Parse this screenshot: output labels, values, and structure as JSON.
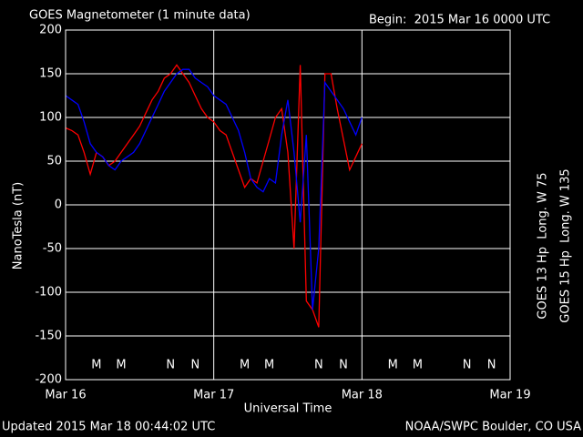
{
  "chart_data": {
    "type": "line",
    "title": "GOES Magnetometer (1 minute data)",
    "subtitle": "Begin:  2015 Mar 16 0000 UTC",
    "x_label": "Universal Time",
    "y_label": "NanoTesla (nT)",
    "footer_left": "Updated 2015 Mar 18 00:44:02 UTC",
    "footer_right": "NOAA/SWPC Boulder, CO USA",
    "background": "#000000",
    "grid": true,
    "grid_color": "#ffffff",
    "xlim": [
      0,
      72
    ],
    "xticks": [
      {
        "value": 0,
        "label": "Mar 16"
      },
      {
        "value": 24,
        "label": "Mar 17"
      },
      {
        "value": 48,
        "label": "Mar 18"
      },
      {
        "value": 72,
        "label": "Mar 19"
      }
    ],
    "ylim": [
      -200,
      200
    ],
    "yticks": [
      -200,
      -150,
      -100,
      -50,
      0,
      50,
      100,
      150,
      200
    ],
    "day_marker_labels": {
      "midnight": "M",
      "noon": "N"
    },
    "x": [
      0,
      1,
      2,
      3,
      4,
      5,
      6,
      7,
      8,
      9,
      10,
      11,
      12,
      13,
      14,
      15,
      16,
      17,
      18,
      19,
      20,
      21,
      22,
      23,
      24,
      25,
      26,
      27,
      28,
      29,
      30,
      31,
      32,
      33,
      34,
      35,
      36,
      37,
      38,
      39,
      40,
      41,
      42,
      43,
      44,
      45,
      46,
      47,
      48
    ],
    "series": [
      {
        "name": "GOES 13 Hp  Long. W 75",
        "color": "#ff0000",
        "values": [
          88,
          85,
          80,
          60,
          35,
          60,
          55,
          45,
          50,
          60,
          70,
          80,
          90,
          105,
          120,
          130,
          145,
          150,
          160,
          150,
          140,
          125,
          110,
          100,
          95,
          85,
          80,
          60,
          40,
          20,
          30,
          25,
          50,
          75,
          100,
          110,
          60,
          -50,
          160,
          -110,
          -120,
          -140,
          150,
          150,
          110,
          75,
          40,
          55,
          70
        ],
        "midnight_x": [
          5,
          29,
          53
        ],
        "noon_x": [
          17,
          41,
          65
        ]
      },
      {
        "name": "GOES 15 Hp  Long. W 135",
        "color": "#0000ff",
        "values": [
          125,
          120,
          115,
          95,
          70,
          60,
          55,
          45,
          40,
          50,
          55,
          60,
          70,
          85,
          100,
          115,
          130,
          140,
          150,
          155,
          155,
          145,
          140,
          135,
          125,
          120,
          115,
          100,
          85,
          60,
          30,
          20,
          15,
          30,
          25,
          80,
          120,
          60,
          -20,
          80,
          -120,
          -50,
          140,
          130,
          120,
          110,
          95,
          80,
          100
        ],
        "midnight_x": [
          9,
          33,
          57
        ],
        "noon_x": [
          21,
          45,
          69
        ]
      }
    ]
  }
}
